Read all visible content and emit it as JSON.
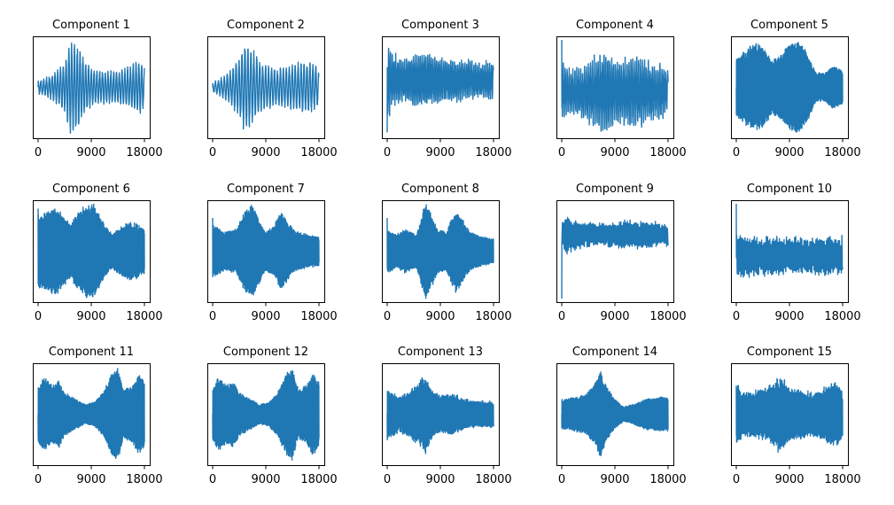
{
  "figure": {
    "background": "#ffffff",
    "line_color": "#1f77b4"
  },
  "chart_data": [
    {
      "type": "line",
      "title": "Component 1",
      "x_ticks": [
        "0",
        "9000",
        "18000"
      ],
      "xlim": [
        0,
        18000
      ],
      "ylim": [
        -1,
        1
      ],
      "yticks_visible": false,
      "n_points": 18000,
      "envelope": [
        [
          0,
          0.15
        ],
        [
          1500,
          0.2
        ],
        [
          3000,
          0.35
        ],
        [
          4500,
          0.55
        ],
        [
          5500,
          1.0
        ],
        [
          6500,
          0.95
        ],
        [
          8000,
          0.55
        ],
        [
          9500,
          0.35
        ],
        [
          11000,
          0.35
        ],
        [
          12500,
          0.35
        ],
        [
          14000,
          0.35
        ],
        [
          15500,
          0.45
        ],
        [
          16500,
          0.55
        ],
        [
          17500,
          0.55
        ],
        [
          18000,
          0.45
        ]
      ],
      "cycles": 38,
      "noise": 0.05,
      "start": 0.0
    },
    {
      "type": "line",
      "title": "Component 2",
      "x_ticks": [
        "0",
        "9000",
        "18000"
      ],
      "xlim": [
        0,
        18000
      ],
      "ylim": [
        -1,
        1
      ],
      "yticks_visible": false,
      "n_points": 18000,
      "envelope": [
        [
          0,
          0.1
        ],
        [
          1500,
          0.2
        ],
        [
          3000,
          0.35
        ],
        [
          4500,
          0.65
        ],
        [
          5500,
          1.0
        ],
        [
          6500,
          0.85
        ],
        [
          8000,
          0.55
        ],
        [
          9500,
          0.45
        ],
        [
          11000,
          0.4
        ],
        [
          12500,
          0.45
        ],
        [
          14000,
          0.5
        ],
        [
          15500,
          0.55
        ],
        [
          16500,
          0.55
        ],
        [
          17500,
          0.45
        ],
        [
          18000,
          0.35
        ]
      ],
      "cycles": 36,
      "noise": 0.05,
      "start": 0.0
    },
    {
      "type": "line",
      "title": "Component 3",
      "x_ticks": [
        "0",
        "9000",
        "18000"
      ],
      "xlim": [
        0,
        18000
      ],
      "ylim": [
        -1,
        1
      ],
      "yticks_visible": false,
      "n_points": 18000,
      "envelope": [
        [
          0,
          0.95
        ],
        [
          600,
          0.55
        ],
        [
          3000,
          0.45
        ],
        [
          6000,
          0.55
        ],
        [
          9000,
          0.45
        ],
        [
          12000,
          0.4
        ],
        [
          15000,
          0.35
        ],
        [
          18000,
          0.35
        ]
      ],
      "cycles": 60,
      "noise": 0.2,
      "start": -0.95,
      "offset": 0.15
    },
    {
      "type": "line",
      "title": "Component 4",
      "x_ticks": [
        "0",
        "9000",
        "18000"
      ],
      "xlim": [
        0,
        18000
      ],
      "ylim": [
        -1,
        1
      ],
      "yticks_visible": false,
      "n_points": 18000,
      "envelope": [
        [
          0,
          0.6
        ],
        [
          1500,
          0.45
        ],
        [
          4000,
          0.55
        ],
        [
          7500,
          0.9
        ],
        [
          9000,
          0.6
        ],
        [
          12000,
          0.75
        ],
        [
          15000,
          0.6
        ],
        [
          18000,
          0.45
        ]
      ],
      "cycles": 55,
      "noise": 0.25,
      "start": 1.0,
      "offset": -0.1
    },
    {
      "type": "line",
      "title": "Component 5",
      "x_ticks": [
        "0",
        "9000",
        "18000"
      ],
      "xlim": [
        0,
        18000
      ],
      "ylim": [
        -1,
        1
      ],
      "yticks_visible": false,
      "n_points": 18000,
      "envelope": [
        [
          0,
          0.6
        ],
        [
          1500,
          0.75
        ],
        [
          3000,
          0.9
        ],
        [
          4500,
          0.85
        ],
        [
          6000,
          0.55
        ],
        [
          7500,
          0.65
        ],
        [
          9000,
          0.9
        ],
        [
          10500,
          1.0
        ],
        [
          12000,
          0.7
        ],
        [
          13500,
          0.3
        ],
        [
          15000,
          0.3
        ],
        [
          16500,
          0.45
        ],
        [
          18000,
          0.35
        ]
      ],
      "cycles": 900,
      "noise": 0.1,
      "start": 0.0
    },
    {
      "type": "line",
      "title": "Component 6",
      "x_ticks": [
        "0",
        "9000",
        "18000"
      ],
      "xlim": [
        0,
        18000
      ],
      "ylim": [
        -1,
        1
      ],
      "yticks_visible": false,
      "n_points": 18000,
      "envelope": [
        [
          0,
          0.75
        ],
        [
          1500,
          0.8
        ],
        [
          3000,
          0.9
        ],
        [
          4500,
          0.7
        ],
        [
          5500,
          0.55
        ],
        [
          6500,
          0.75
        ],
        [
          8000,
          0.95
        ],
        [
          9500,
          0.95
        ],
        [
          11000,
          0.6
        ],
        [
          12500,
          0.35
        ],
        [
          14000,
          0.5
        ],
        [
          15500,
          0.6
        ],
        [
          17000,
          0.55
        ],
        [
          18000,
          0.45
        ]
      ],
      "cycles": 900,
      "noise": 0.1,
      "start": 0.9
    },
    {
      "type": "line",
      "title": "Component 7",
      "x_ticks": [
        "0",
        "9000",
        "18000"
      ],
      "xlim": [
        0,
        18000
      ],
      "ylim": [
        -1,
        1
      ],
      "yticks_visible": false,
      "n_points": 18000,
      "envelope": [
        [
          0,
          0.55
        ],
        [
          2000,
          0.4
        ],
        [
          4000,
          0.45
        ],
        [
          5500,
          0.85
        ],
        [
          6500,
          1.0
        ],
        [
          7500,
          0.75
        ],
        [
          9000,
          0.4
        ],
        [
          10500,
          0.55
        ],
        [
          11500,
          0.8
        ],
        [
          12500,
          0.65
        ],
        [
          14000,
          0.4
        ],
        [
          16000,
          0.35
        ],
        [
          18000,
          0.3
        ]
      ],
      "cycles": 900,
      "noise": 0.1,
      "start": 0.7
    },
    {
      "type": "line",
      "title": "Component 8",
      "x_ticks": [
        "0",
        "9000",
        "18000"
      ],
      "xlim": [
        0,
        18000
      ],
      "ylim": [
        -1,
        1
      ],
      "yticks_visible": false,
      "n_points": 18000,
      "envelope": [
        [
          0,
          0.45
        ],
        [
          1500,
          0.35
        ],
        [
          3000,
          0.45
        ],
        [
          5000,
          0.35
        ],
        [
          6500,
          1.0
        ],
        [
          7500,
          0.75
        ],
        [
          8500,
          0.45
        ],
        [
          10000,
          0.4
        ],
        [
          11500,
          0.85
        ],
        [
          12500,
          0.7
        ],
        [
          14000,
          0.4
        ],
        [
          16000,
          0.3
        ],
        [
          18000,
          0.25
        ]
      ],
      "cycles": 900,
      "noise": 0.1,
      "start": 0.7
    },
    {
      "type": "line",
      "title": "Component 9",
      "x_ticks": [
        "0",
        "9000",
        "18000"
      ],
      "xlim": [
        0,
        18000
      ],
      "ylim": [
        -1,
        1
      ],
      "yticks_visible": false,
      "n_points": 18000,
      "envelope": [
        [
          0,
          0.2
        ],
        [
          800,
          0.4
        ],
        [
          2000,
          0.3
        ],
        [
          6000,
          0.2
        ],
        [
          10000,
          0.25
        ],
        [
          14000,
          0.25
        ],
        [
          18000,
          0.2
        ]
      ],
      "cycles": 80,
      "noise": 0.15,
      "start": -1.0,
      "offset": 0.35
    },
    {
      "type": "line",
      "title": "Component 10",
      "x_ticks": [
        "0",
        "9000",
        "18000"
      ],
      "xlim": [
        0,
        18000
      ],
      "ylim": [
        -1,
        1
      ],
      "yticks_visible": false,
      "n_points": 18000,
      "envelope": [
        [
          0,
          0.5
        ],
        [
          1500,
          0.4
        ],
        [
          5000,
          0.35
        ],
        [
          9000,
          0.35
        ],
        [
          13000,
          0.35
        ],
        [
          18000,
          0.35
        ]
      ],
      "cycles": 90,
      "noise": 0.2,
      "start": 1.0,
      "offset": -0.1
    },
    {
      "type": "line",
      "title": "Component 11",
      "x_ticks": [
        "0",
        "9000",
        "18000"
      ],
      "xlim": [
        0,
        18000
      ],
      "ylim": [
        -1,
        1
      ],
      "yticks_visible": false,
      "n_points": 18000,
      "envelope": [
        [
          0,
          0.6
        ],
        [
          1000,
          0.75
        ],
        [
          2500,
          0.6
        ],
        [
          3500,
          0.7
        ],
        [
          4500,
          0.45
        ],
        [
          6500,
          0.3
        ],
        [
          8000,
          0.2
        ],
        [
          9500,
          0.25
        ],
        [
          11000,
          0.45
        ],
        [
          12500,
          0.85
        ],
        [
          13500,
          0.95
        ],
        [
          14500,
          0.5
        ],
        [
          16000,
          0.6
        ],
        [
          17000,
          0.85
        ],
        [
          18000,
          0.7
        ]
      ],
      "cycles": 900,
      "noise": 0.1,
      "start": 0.0
    },
    {
      "type": "line",
      "title": "Component 12",
      "x_ticks": [
        "0",
        "9000",
        "18000"
      ],
      "xlim": [
        0,
        18000
      ],
      "ylim": [
        -1,
        1
      ],
      "yticks_visible": false,
      "n_points": 18000,
      "envelope": [
        [
          0,
          0.55
        ],
        [
          1000,
          0.75
        ],
        [
          2500,
          0.6
        ],
        [
          3500,
          0.7
        ],
        [
          4500,
          0.45
        ],
        [
          6500,
          0.3
        ],
        [
          8000,
          0.2
        ],
        [
          9500,
          0.25
        ],
        [
          11000,
          0.45
        ],
        [
          12500,
          0.85
        ],
        [
          13500,
          0.95
        ],
        [
          14500,
          0.5
        ],
        [
          16000,
          0.6
        ],
        [
          17000,
          0.85
        ],
        [
          18000,
          0.65
        ]
      ],
      "cycles": 900,
      "noise": 0.1,
      "start": 0.0
    },
    {
      "type": "line",
      "title": "Component 13",
      "x_ticks": [
        "0",
        "9000",
        "18000"
      ],
      "xlim": [
        0,
        18000
      ],
      "ylim": [
        -1,
        1
      ],
      "yticks_visible": false,
      "n_points": 18000,
      "envelope": [
        [
          0,
          0.5
        ],
        [
          2000,
          0.35
        ],
        [
          4000,
          0.45
        ],
        [
          6500,
          0.75
        ],
        [
          7500,
          0.5
        ],
        [
          9000,
          0.35
        ],
        [
          11000,
          0.4
        ],
        [
          13000,
          0.3
        ],
        [
          15000,
          0.25
        ],
        [
          18000,
          0.25
        ]
      ],
      "cycles": 850,
      "noise": 0.3,
      "start": 0.0
    },
    {
      "type": "line",
      "title": "Component 14",
      "x_ticks": [
        "0",
        "9000",
        "18000"
      ],
      "xlim": [
        0,
        18000
      ],
      "ylim": [
        -1,
        1
      ],
      "yticks_visible": false,
      "n_points": 18000,
      "envelope": [
        [
          0,
          0.3
        ],
        [
          2000,
          0.35
        ],
        [
          4000,
          0.4
        ],
        [
          5500,
          0.6
        ],
        [
          6500,
          0.9
        ],
        [
          7500,
          0.6
        ],
        [
          9000,
          0.3
        ],
        [
          10500,
          0.15
        ],
        [
          12000,
          0.2
        ],
        [
          14000,
          0.3
        ],
        [
          16000,
          0.35
        ],
        [
          18000,
          0.35
        ]
      ],
      "cycles": 900,
      "noise": 0.1,
      "start": 0.0
    },
    {
      "type": "line",
      "title": "Component 15",
      "x_ticks": [
        "0",
        "9000",
        "18000"
      ],
      "xlim": [
        0,
        18000
      ],
      "ylim": [
        -1,
        1
      ],
      "yticks_visible": false,
      "n_points": 18000,
      "envelope": [
        [
          0,
          0.6
        ],
        [
          1500,
          0.4
        ],
        [
          3500,
          0.45
        ],
        [
          6000,
          0.55
        ],
        [
          7500,
          0.75
        ],
        [
          9000,
          0.5
        ],
        [
          11000,
          0.45
        ],
        [
          13000,
          0.4
        ],
        [
          15500,
          0.55
        ],
        [
          17000,
          0.6
        ],
        [
          18000,
          0.45
        ]
      ],
      "cycles": 700,
      "noise": 0.35,
      "start": 0.6
    }
  ]
}
